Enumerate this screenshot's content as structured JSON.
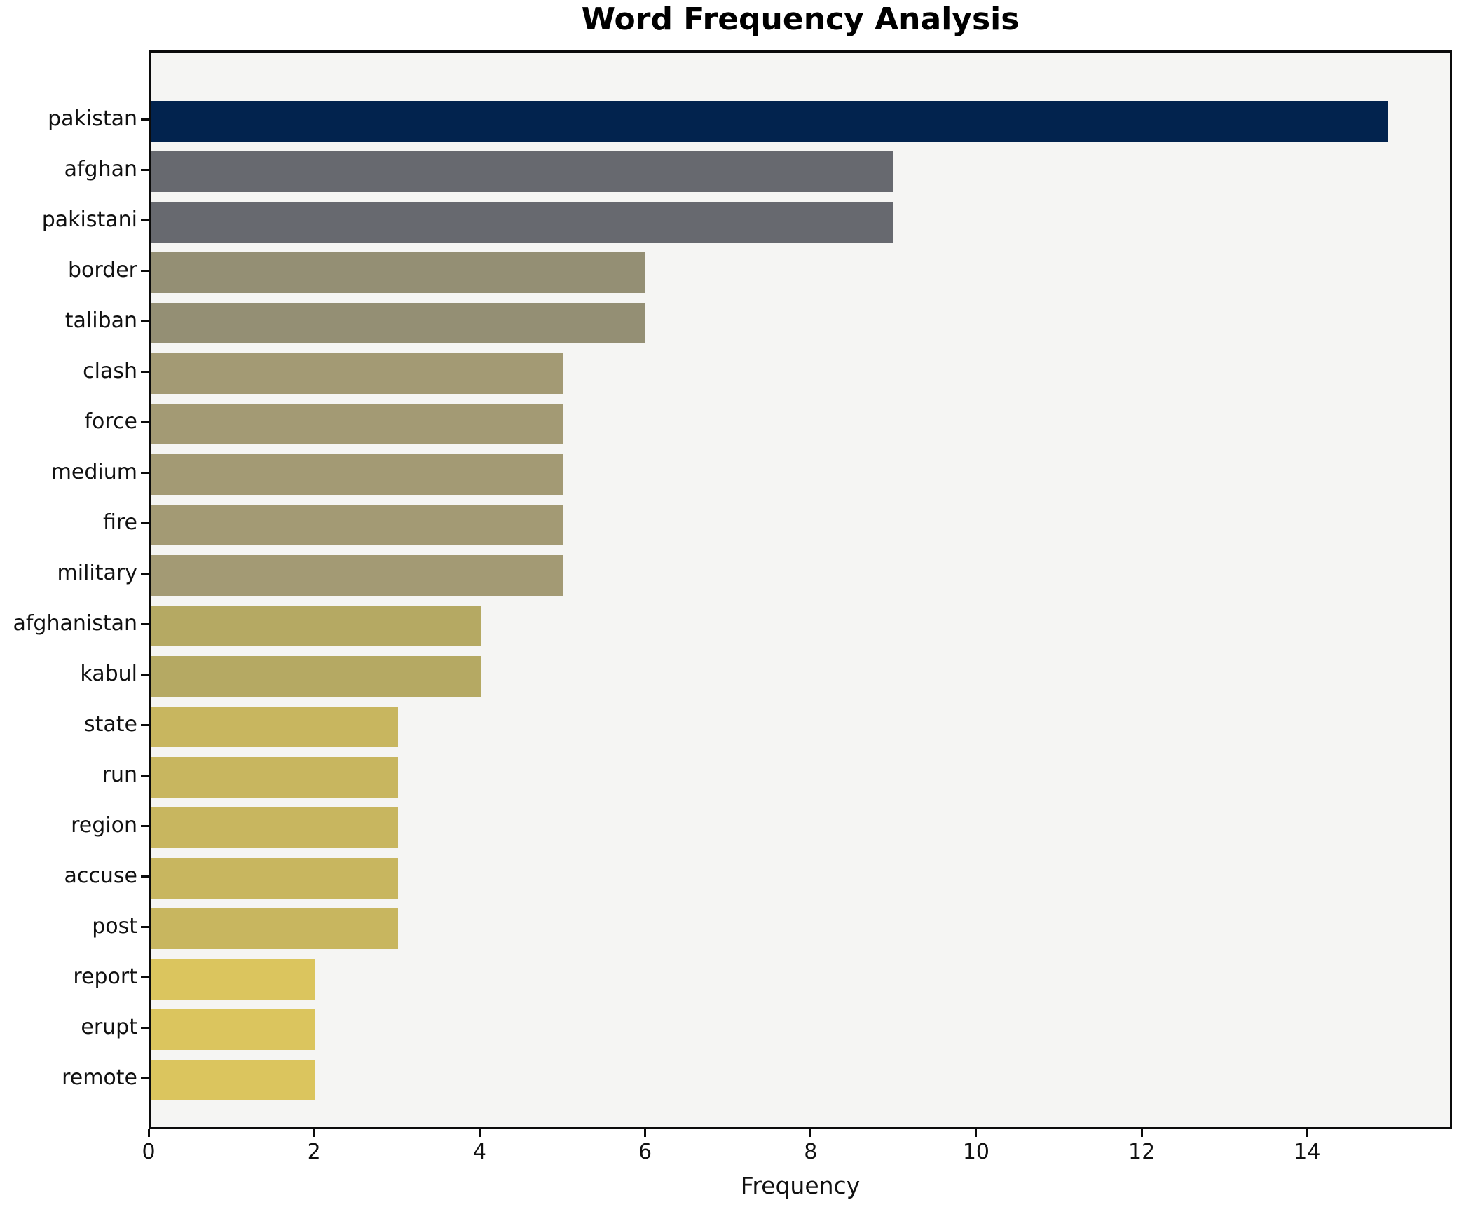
{
  "chart_data": {
    "type": "bar",
    "orientation": "horizontal",
    "title": "Word Frequency Analysis",
    "xlabel": "Frequency",
    "ylabel": "",
    "xlim": [
      0,
      15.75
    ],
    "xticks": [
      0,
      2,
      4,
      6,
      8,
      10,
      12,
      14
    ],
    "grid": false,
    "legend": "none",
    "figure_background": "#ffffff",
    "plot_background": "#f5f5f3",
    "spine_color": "#0b0b0b",
    "tick_label_color": "#111111",
    "categories": [
      "pakistan",
      "afghan",
      "pakistani",
      "border",
      "taliban",
      "clash",
      "force",
      "medium",
      "fire",
      "military",
      "afghanistan",
      "kabul",
      "state",
      "run",
      "region",
      "accuse",
      "post",
      "report",
      "erupt",
      "remote"
    ],
    "values": [
      15,
      9,
      9,
      6,
      6,
      5,
      5,
      5,
      5,
      5,
      4,
      4,
      3,
      3,
      3,
      3,
      3,
      2,
      2,
      2
    ],
    "bar_colors": [
      "#02234e",
      "#67696f",
      "#67696f",
      "#948f74",
      "#948f74",
      "#a39a74",
      "#a39a74",
      "#a39a74",
      "#a39a74",
      "#a39a74",
      "#b5a963",
      "#b5a963",
      "#c8b65f",
      "#c8b65f",
      "#c8b65f",
      "#c8b65f",
      "#c8b65f",
      "#dbc55e",
      "#dbc55e",
      "#dbc55e"
    ]
  }
}
